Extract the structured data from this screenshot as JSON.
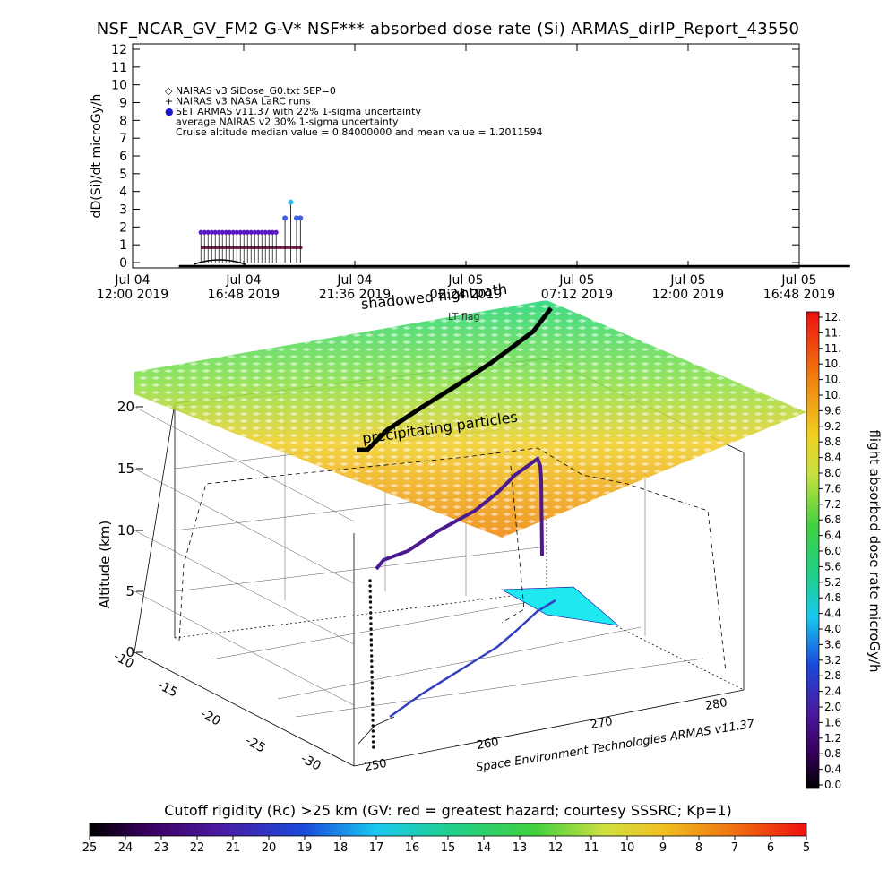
{
  "title": "NSF_NCAR_GV_FM2 G-V* NSF*** absorbed dose rate (Si) ARMAS_dirIP_Report_43550",
  "chart_data": [
    {
      "type": "scatter",
      "name": "dose-rate-timeline",
      "ylabel": "dD(Si)/dt microGy/h",
      "ylim": [
        0,
        12
      ],
      "y_ticks": [
        "0",
        "1",
        "2",
        "3",
        "4",
        "5",
        "6",
        "7",
        "8",
        "9",
        "10",
        "11",
        "12"
      ],
      "x_tick_labels": [
        {
          "date": "Jul 04",
          "time": "12:00 2019"
        },
        {
          "date": "Jul 04",
          "time": "16:48 2019"
        },
        {
          "date": "Jul 04",
          "time": "21:36 2019"
        },
        {
          "date": "Jul 05",
          "time": "02:24 2019"
        },
        {
          "date": "Jul 05",
          "time": "07:12 2019"
        },
        {
          "date": "Jul 05",
          "time": "12:00 2019"
        },
        {
          "date": "Jul 05",
          "time": "16:48 2019"
        }
      ],
      "legend": [
        {
          "symbol": "◇",
          "text": "NAIRAS v3 SiDose_G0.txt SEP=0",
          "color": "#000000"
        },
        {
          "symbol": "+",
          "text": "NAIRAS v3 NASA LaRC runs",
          "color": "#000000"
        },
        {
          "symbol": "●",
          "text": "SET ARMAS v11.37 with 22% 1-sigma uncertainty",
          "color": "#1a1acc"
        },
        {
          "symbol": "",
          "text": "average NAIRAS v2 30% 1-sigma uncertainty",
          "color": "#000000"
        },
        {
          "symbol": "",
          "text": "Cruise altitude median value = 0.84000000 and mean value = 1.2011594",
          "color": "#000000"
        }
      ],
      "legend_placement": "top-left",
      "series": [
        {
          "name": "SET ARMAS v11.37 with 22% 1-sigma uncertainty",
          "x": [
            "Jul 04 14:57",
            "Jul 04 15:30",
            "Jul 04 16:00",
            "Jul 04 16:30",
            "Jul 04 17:00",
            "Jul 04 17:30",
            "Jul 04 18:00",
            "Jul 04 18:20",
            "Jul 04 18:35",
            "Jul 04 18:50",
            "Jul 04 19:05",
            "Jul 04 19:15"
          ],
          "values": [
            1.7,
            1.7,
            1.7,
            1.7,
            1.7,
            1.7,
            1.7,
            1.7,
            2.5,
            3.4,
            2.5,
            2.5
          ]
        },
        {
          "name": "average NAIRAS v2 30% 1-sigma uncertainty",
          "x": [
            "Jul 04 14:57",
            "Jul 04 19:20"
          ],
          "values": [
            0.84,
            0.84
          ]
        },
        {
          "name": "NAIRAS v3 SiDose_G0.txt SEP=0",
          "x": [
            "Jul 04 14:00",
            "Jul 05 19:00"
          ],
          "values": [
            0.0,
            0.0
          ]
        }
      ]
    },
    {
      "type": "scatter",
      "name": "3d-flight-path",
      "zlabel": "Altitude (km)",
      "z_ticks": [
        "0",
        "5",
        "10",
        "15",
        "20"
      ],
      "zlim": [
        0,
        20
      ],
      "y_ticks": [
        "-10",
        "-15",
        "-20",
        "-25",
        "-30"
      ],
      "x_ticks": [
        "250",
        "260",
        "270",
        "280"
      ],
      "annotations": [
        "shadowed flightpath",
        "LT flag",
        "precipitating particles"
      ],
      "colorbar": {
        "label": "flight absorbed dose rate microGy/h",
        "ticks": [
          "12.",
          "11.",
          "11.",
          "10.",
          "10.",
          "10.",
          "9.6",
          "9.2",
          "8.8",
          "8.4",
          "8.0",
          "7.6",
          "7.2",
          "6.8",
          "6.4",
          "6.0",
          "5.6",
          "5.2",
          "4.8",
          "4.4",
          "4.0",
          "3.6",
          "3.2",
          "2.8",
          "2.4",
          "2.0",
          "1.6",
          "1.2",
          "0.8",
          "0.4",
          "0.0"
        ]
      },
      "credit": "Space Environment Technologies ARMAS v11.37"
    },
    {
      "type": "colorbar",
      "name": "cutoff-rigidity",
      "title": "Cutoff rigidity (Rc) >25 km (GV: red = greatest hazard; courtesy SSSRC; Kp=1)",
      "ticks": [
        "25",
        "24",
        "23",
        "22",
        "21",
        "20",
        "19",
        "18",
        "17",
        "16",
        "15",
        "14",
        "13",
        "12",
        "11",
        "10",
        "9",
        "8",
        "7",
        "6",
        "5"
      ]
    }
  ]
}
